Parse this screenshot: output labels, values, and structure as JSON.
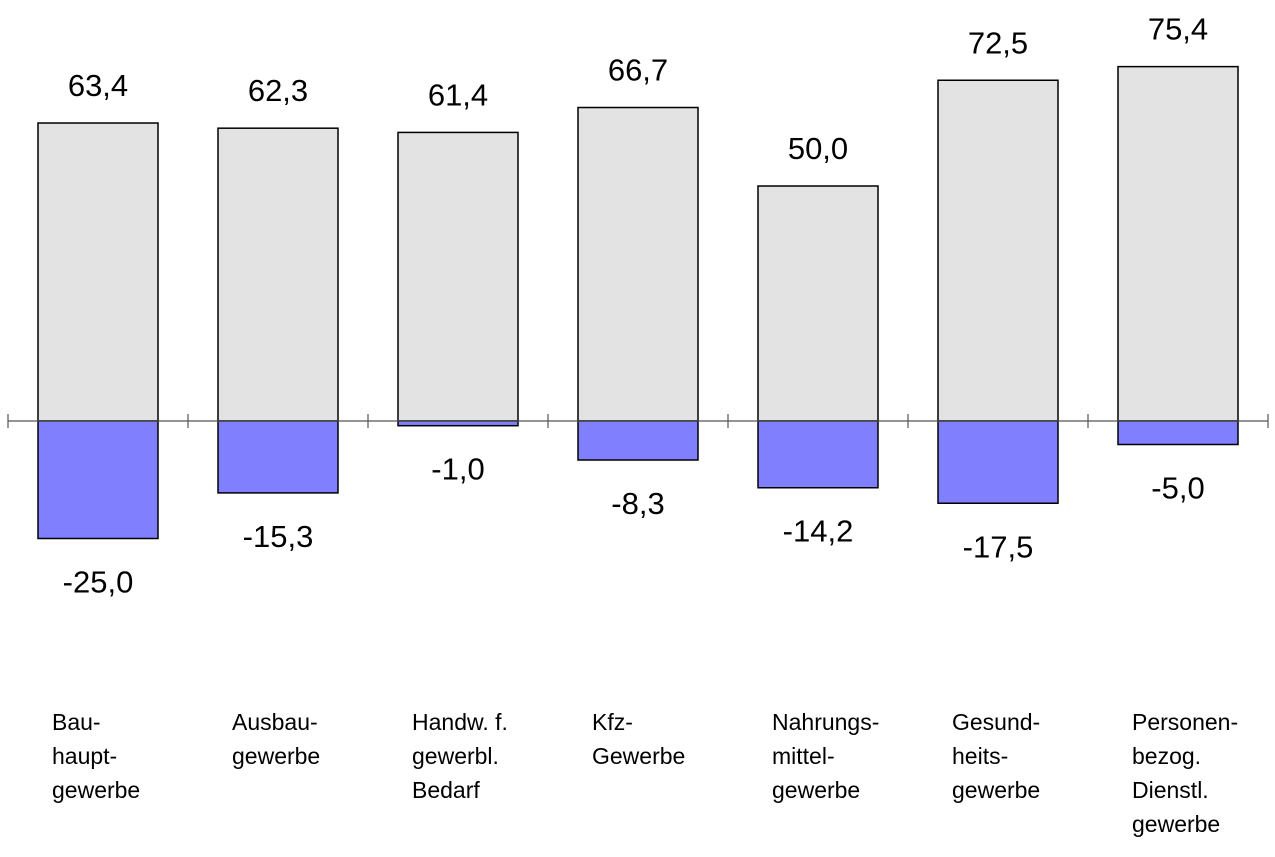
{
  "chart_data": {
    "type": "bar",
    "stacked": true,
    "categories": [
      [
        "Bau-",
        "haupt-",
        "gewerbe"
      ],
      [
        "Ausbau-",
        "gewerbe"
      ],
      [
        "Handw. f.",
        "gewerbl.",
        "Bedarf"
      ],
      [
        "Kfz-",
        "Gewerbe"
      ],
      [
        "Nahrungs-",
        "mittel-",
        "gewerbe"
      ],
      [
        "Gesund-",
        "heits-",
        "gewerbe"
      ],
      [
        "Personen-",
        "bezog.",
        "Dienstl.",
        "gewerbe"
      ]
    ],
    "series": [
      {
        "values": [
          63.4,
          62.3,
          61.4,
          66.7,
          50.0,
          72.5,
          75.4
        ],
        "labels": [
          "63,4",
          "62,3",
          "61,4",
          "66,7",
          "50,0",
          "72,5",
          "75,4"
        ],
        "color": "#e3e3e3"
      },
      {
        "values": [
          -25.0,
          -15.3,
          -1.0,
          -8.3,
          -14.2,
          -17.5,
          -5.0
        ],
        "labels": [
          "-25,0",
          "-15,3",
          "-1,0",
          "-8,3",
          "-14,2",
          "-17,5",
          "-5,0"
        ],
        "color": "#8080ff"
      }
    ],
    "ylim": [
      -25,
      80
    ],
    "grid": false,
    "legend": "none",
    "title": "",
    "xlabel": "",
    "ylabel": ""
  }
}
